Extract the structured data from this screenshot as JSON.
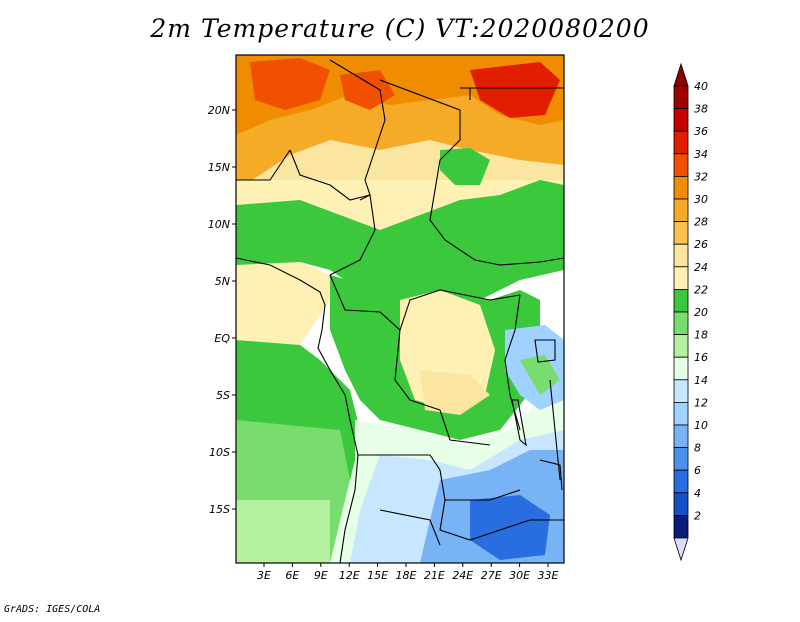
{
  "title": "2m Temperature (C) VT:2020080200",
  "credit": "GrADS: IGES/COLA",
  "map": {
    "lat_ticks": [
      "20N",
      "15N",
      "10N",
      "5N",
      "EQ",
      "5S",
      "10S",
      "15S"
    ],
    "lon_ticks": [
      "3E",
      "6E",
      "9E",
      "12E",
      "15E",
      "18E",
      "21E",
      "24E",
      "27E",
      "30E",
      "33E"
    ]
  },
  "colorbar": {
    "levels": [
      "40",
      "38",
      "36",
      "34",
      "32",
      "30",
      "28",
      "26",
      "24",
      "22",
      "20",
      "18",
      "16",
      "14",
      "12",
      "10",
      "8",
      "6",
      "4",
      "2"
    ],
    "colors": [
      "#a00000",
      "#c80000",
      "#e11e00",
      "#f05000",
      "#f08c00",
      "#f5aa28",
      "#fac050",
      "#fae6a0",
      "#fff0b4",
      "#3cc83c",
      "#78dc6e",
      "#b4f0a0",
      "#e6ffe6",
      "#c8e6ff",
      "#a0d2ff",
      "#78b4f5",
      "#4b91eb",
      "#286ee1",
      "#1450c8",
      "#0a1e78"
    ],
    "top_arrow_color": "#8c0000",
    "bottom_arrow_color": "#dcdcff"
  }
}
